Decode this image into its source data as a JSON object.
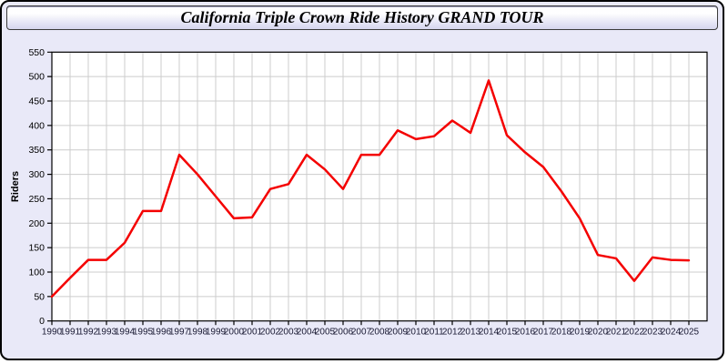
{
  "window": {
    "title": "California Triple Crown Ride History GRAND TOUR"
  },
  "colors": {
    "page_background": "#e9e9f8",
    "titlebar_gradient_top": "#ffffff",
    "titlebar_gradient_bottom": "#d5d5ee",
    "plot_background": "#ffffff",
    "gridline": "#cccccc",
    "axis": "#000000",
    "line": "#f40000",
    "x_tick_label": "#1a1a33",
    "y_tick_label": "#000000"
  },
  "chart_data": {
    "type": "line",
    "title": "California Triple Crown Ride History GRAND TOUR",
    "xlabel": "",
    "ylabel": "Riders",
    "x": [
      1990,
      1991,
      1992,
      1993,
      1994,
      1995,
      1996,
      1997,
      1998,
      1999,
      2000,
      2001,
      2002,
      2003,
      2004,
      2005,
      2006,
      2007,
      2008,
      2009,
      2010,
      2011,
      2012,
      2013,
      2014,
      2015,
      2016,
      2017,
      2018,
      2019,
      2020,
      2021,
      2022,
      2023,
      2024,
      2025
    ],
    "series": [
      {
        "name": "Riders",
        "color": "#f40000",
        "values": [
          50,
          88,
          125,
          125,
          160,
          225,
          225,
          340,
          300,
          255,
          210,
          212,
          270,
          280,
          340,
          310,
          270,
          340,
          340,
          390,
          372,
          378,
          410,
          385,
          492,
          380,
          345,
          315,
          265,
          210,
          135,
          128,
          82,
          130,
          125,
          124
        ]
      }
    ],
    "ylim": [
      0,
      550
    ],
    "ytick_step": 50,
    "grid": true,
    "legend_position": "none"
  }
}
